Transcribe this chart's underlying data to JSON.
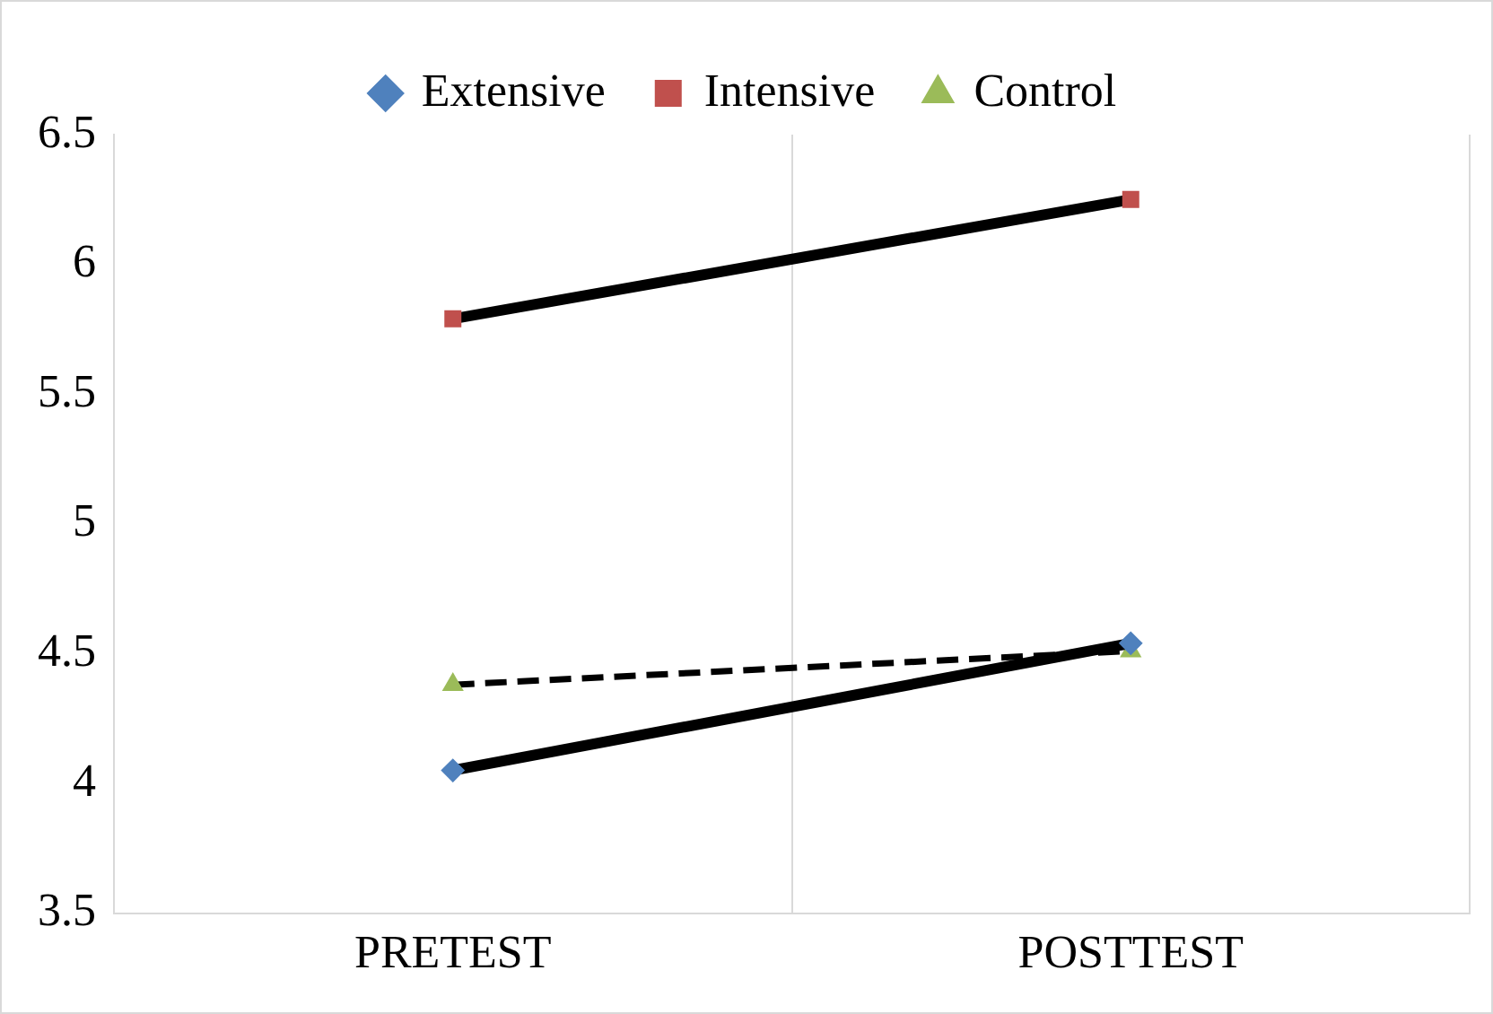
{
  "chart_data": {
    "type": "line",
    "categories": [
      "PRETEST",
      "POSTTEST"
    ],
    "series": [
      {
        "name": "Extensive",
        "color": "#4f81bd",
        "marker": "diamond",
        "line_style": "solid",
        "values": [
          4.05,
          4.54
        ]
      },
      {
        "name": "Intensive",
        "color": "#c0504d",
        "marker": "square",
        "line_style": "solid",
        "values": [
          5.79,
          6.25
        ]
      },
      {
        "name": "Control",
        "color": "#9bbb59",
        "marker": "triangle",
        "line_style": "dashed",
        "values": [
          4.38,
          4.51
        ]
      }
    ],
    "ylim": [
      3.5,
      6.5
    ],
    "yticks": [
      3.5,
      4,
      4.5,
      5,
      5.5,
      6,
      6.5
    ],
    "grid": "x",
    "legend": "top"
  }
}
